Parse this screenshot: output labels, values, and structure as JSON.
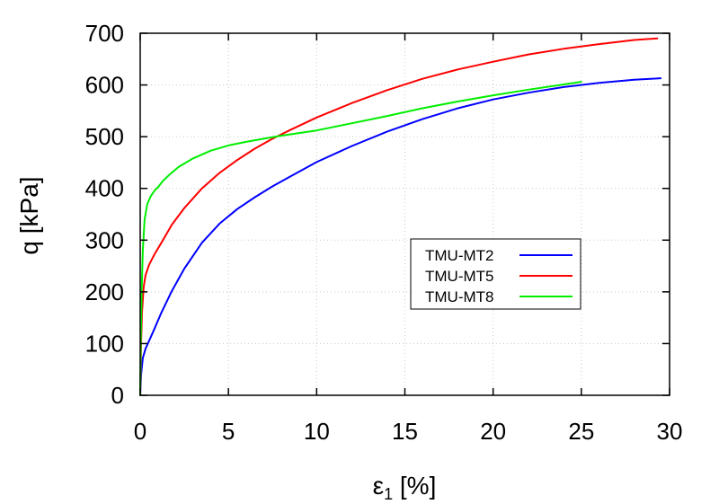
{
  "chart_data": {
    "type": "line",
    "title": "",
    "xlabel_main": "ε",
    "xlabel_sub": "1",
    "xlabel_unit": " [%]",
    "ylabel": "q [kPa]",
    "xlim": [
      0,
      30
    ],
    "ylim": [
      0,
      700
    ],
    "xticks": [
      0,
      5,
      10,
      15,
      20,
      25,
      30
    ],
    "yticks": [
      0,
      100,
      200,
      300,
      400,
      500,
      600,
      700
    ],
    "grid": true,
    "legend_position": "center-right",
    "series": [
      {
        "name": "TMU-MT2",
        "color": "#0000ff",
        "x": [
          0,
          0.05,
          0.15,
          0.3,
          0.5,
          0.8,
          1.2,
          1.8,
          2.5,
          3.5,
          4.5,
          5.5,
          6.5,
          7.5,
          8.5,
          10,
          12,
          14,
          16,
          18,
          20,
          22,
          24,
          26,
          28,
          29.5
        ],
        "y": [
          0,
          40,
          72,
          90,
          105,
          128,
          160,
          202,
          245,
          295,
          332,
          360,
          383,
          404,
          423,
          451,
          482,
          510,
          534,
          555,
          572,
          585,
          596,
          604,
          610,
          613
        ]
      },
      {
        "name": "TMU-MT5",
        "color": "#ff0000",
        "x": [
          0,
          0.05,
          0.1,
          0.2,
          0.3,
          0.5,
          0.8,
          1.2,
          1.8,
          2.5,
          3.5,
          4.5,
          5.5,
          6.5,
          7.5,
          8.5,
          10,
          12,
          14,
          16,
          18,
          20,
          22,
          24,
          26,
          28,
          29.3
        ],
        "y": [
          0,
          100,
          160,
          210,
          232,
          252,
          272,
          295,
          330,
          362,
          400,
          430,
          455,
          477,
          496,
          513,
          537,
          565,
          590,
          612,
          630,
          645,
          659,
          670,
          679,
          687,
          690
        ]
      },
      {
        "name": "TMU-MT8",
        "color": "#00ee00",
        "x": [
          0,
          0.03,
          0.08,
          0.15,
          0.25,
          0.4,
          0.6,
          0.8,
          1.0,
          1.3,
          1.7,
          2.2,
          3.0,
          4.0,
          5.0,
          6.0,
          7.0,
          8.0,
          9.0,
          10,
          12,
          14,
          16,
          18,
          20,
          22,
          24,
          25
        ],
        "y": [
          0,
          100,
          200,
          280,
          340,
          370,
          385,
          395,
          402,
          415,
          428,
          442,
          458,
          473,
          483,
          490,
          496,
          502,
          507,
          512,
          526,
          540,
          555,
          568,
          580,
          591,
          601,
          606
        ]
      }
    ]
  }
}
